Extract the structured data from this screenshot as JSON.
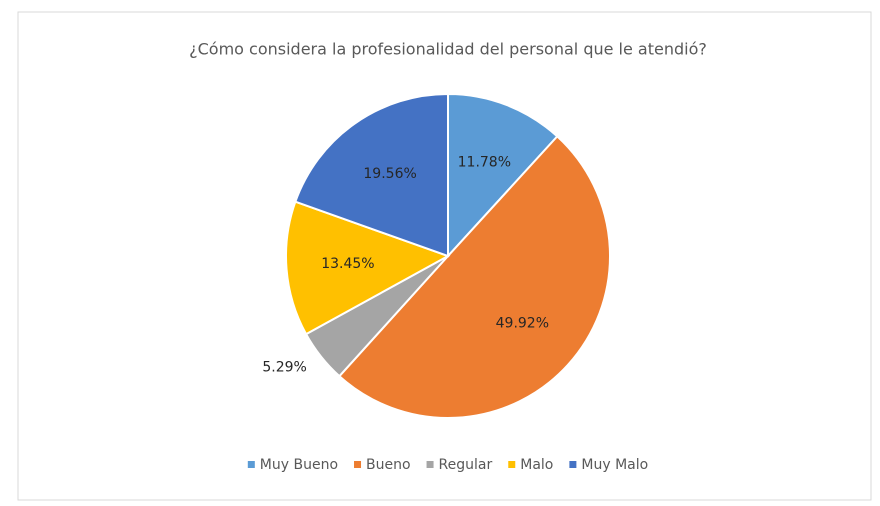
{
  "chart_data": {
    "type": "pie",
    "title": "¿Cómo considera la profesionalidad del personal que le atendió?",
    "categories": [
      "Muy Bueno",
      "Bueno",
      "Regular",
      "Malo",
      "Muy Malo"
    ],
    "values": [
      11.78,
      49.92,
      5.29,
      13.45,
      19.56
    ],
    "value_labels": [
      "11.78%",
      "49.92%",
      "5.29%",
      "13.45%",
      "19.56%"
    ],
    "colors": [
      "#5b9bd5",
      "#ed7d31",
      "#a5a5a5",
      "#ffc000",
      "#4472c4"
    ],
    "legend": "bottom"
  }
}
